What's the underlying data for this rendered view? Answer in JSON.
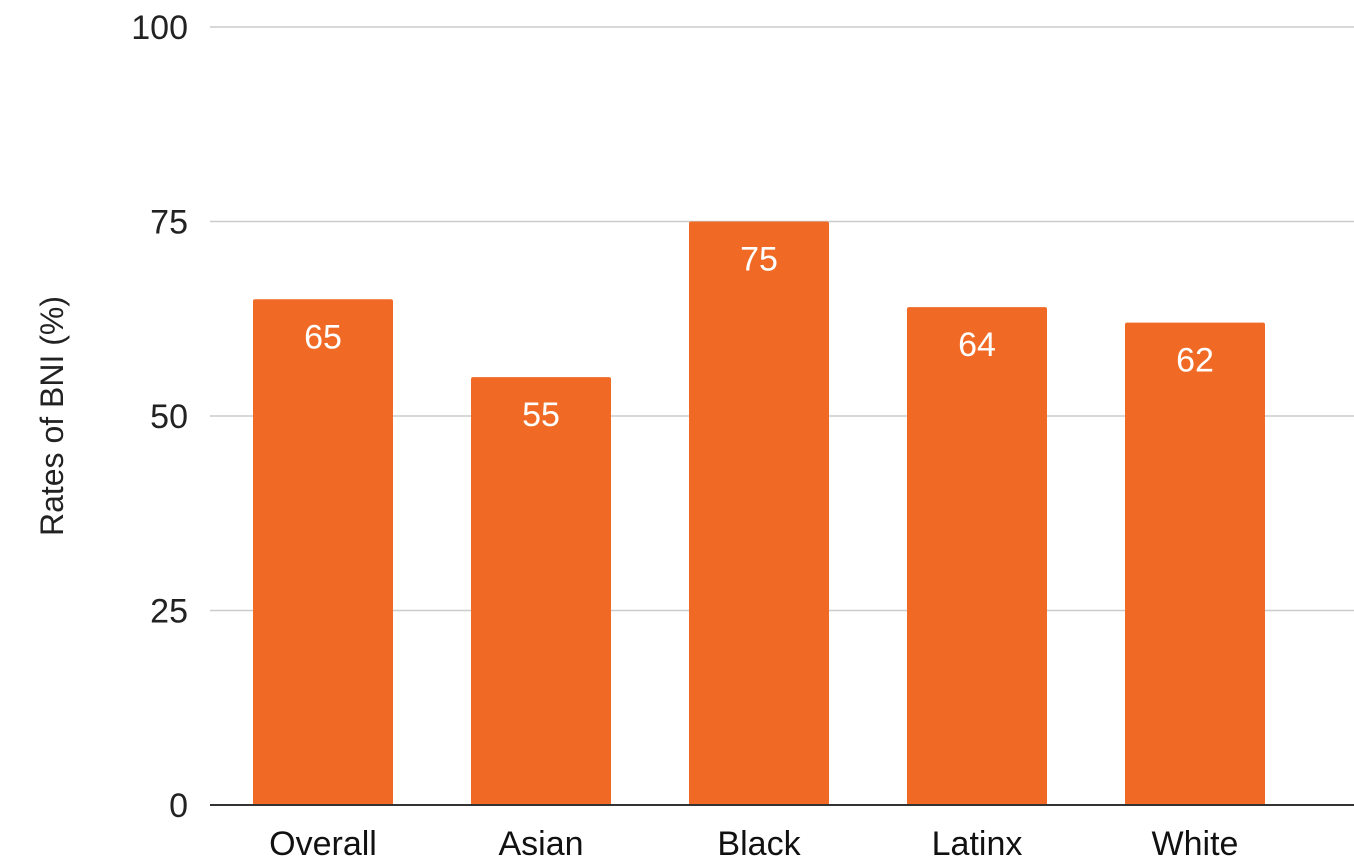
{
  "chart_data": {
    "type": "bar",
    "categories": [
      "Overall",
      "Asian",
      "Black",
      "Latinx",
      "White"
    ],
    "values": [
      65,
      55,
      75,
      64,
      62
    ],
    "data_labels": [
      "65",
      "55",
      "75",
      "64",
      "62"
    ],
    "title": "",
    "xlabel": "",
    "ylabel": "Rates of BNI (%)",
    "ylim": [
      0,
      100
    ],
    "yticks": [
      0,
      25,
      50,
      75,
      100
    ],
    "grid": true,
    "legend": "none",
    "bar_color": "#F06A25"
  }
}
